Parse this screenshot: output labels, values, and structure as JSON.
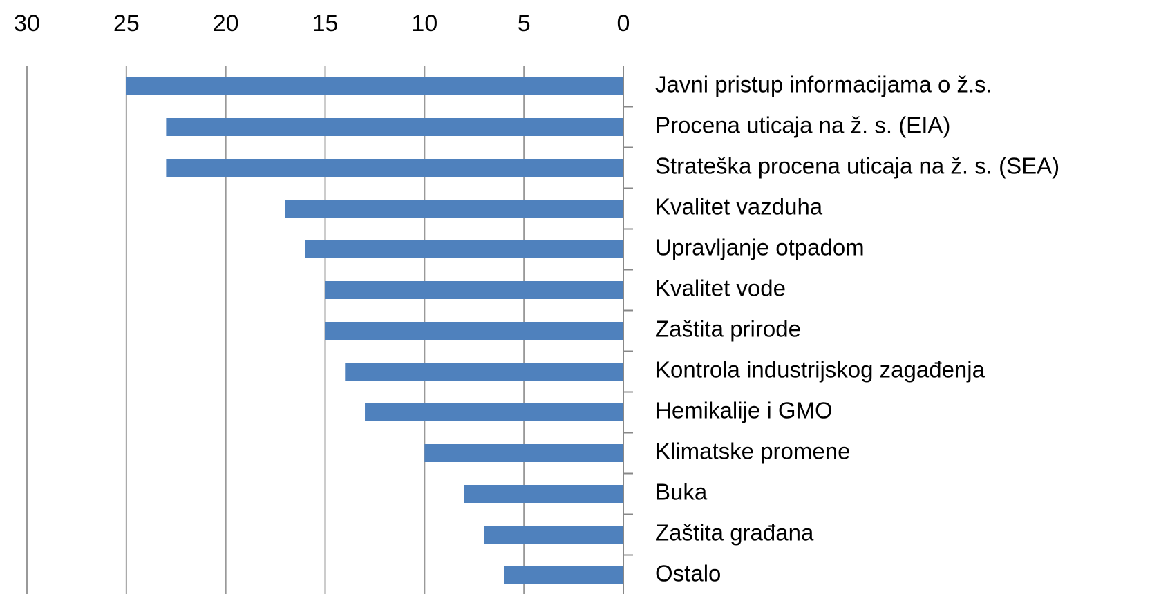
{
  "chart_data": {
    "type": "bar",
    "orientation": "horizontal",
    "categories": [
      "Javni pristup informacijama o ž.s.",
      "Procena uticaja na ž. s. (EIA)",
      "Strateška procena uticaja na ž. s. (SEA)",
      "Kvalitet vazduha",
      "Upravljanje otpadom",
      "Kvalitet vode",
      "Zaštita prirode",
      "Kontrola industrijskog zagađenja",
      "Hemikalije i GMO",
      "Klimatske promene",
      "Buka",
      "Zaštita građana",
      "Ostalo"
    ],
    "values": [
      25,
      23,
      23,
      17,
      16,
      15,
      15,
      14,
      13,
      10,
      8,
      7,
      6
    ],
    "color": "#4f81bd",
    "xlim": [
      0,
      30
    ],
    "xticks": [
      30,
      25,
      20,
      15,
      10,
      5,
      0
    ],
    "x_reversed": true,
    "x_axis_position": "top",
    "grid": true
  }
}
